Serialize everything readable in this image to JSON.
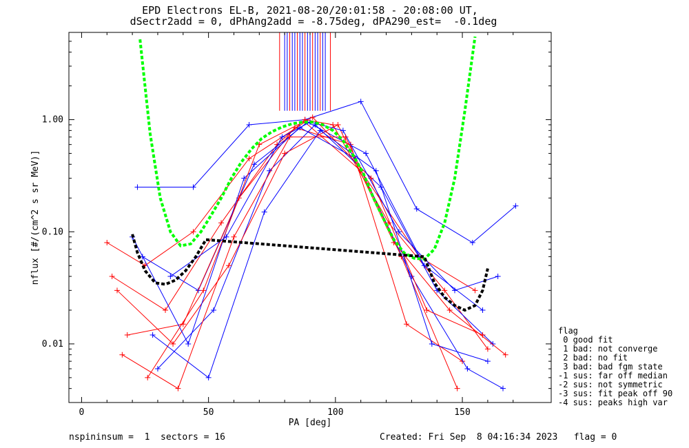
{
  "title": {
    "line1": "EPD Electrons EL-B, 2021-08-20/20:01:58 - 20:08:00 UT,",
    "line2": "dSectr2add = 0, dPhAng2add = -8.75deg, dPA290_est=  -0.1deg"
  },
  "footer": {
    "left": "nspininsum =  1  sectors = 16",
    "right": "Created: Fri Sep  8 04:16:34 2023   flag = 0"
  },
  "legend": {
    "title": "flag",
    "items": [
      " 0 good fit",
      " 1 bad: not converge",
      " 2 bad: no fit",
      " 3 bad: bad fgm state",
      "-1 sus: far off median",
      "-2 sus: not symmetric",
      "-3 sus: fit peak off 90",
      "-4 sus: peaks high var"
    ]
  },
  "chart_data": {
    "type": "line",
    "xlabel": "PA [deg]",
    "ylabel": "nflux [#/(cm^2 s sr MeV)]",
    "xlim": [
      -5,
      185
    ],
    "ylim": [
      0.003,
      6.0
    ],
    "ylog": true,
    "xticks": [
      0,
      50,
      100,
      150
    ],
    "yticks": [
      {
        "value": 0.01,
        "label": "0.01"
      },
      {
        "value": 0.1,
        "label": "0.10"
      },
      {
        "value": 1.0,
        "label": "1.00"
      }
    ],
    "colors": {
      "red": "#ff0000",
      "blue": "#0000ff",
      "green": "#00ff00",
      "black": "#000000"
    },
    "series": [
      {
        "color": "red",
        "x": [
          10,
          25,
          44,
          66,
          88,
          110,
          133,
          155
        ],
        "y": [
          0.08,
          0.05,
          0.1,
          0.45,
          0.95,
          0.35,
          0.06,
          0.03
        ]
      },
      {
        "color": "blue",
        "x": [
          22,
          44,
          66,
          88,
          110,
          132,
          154,
          171
        ],
        "y": [
          0.25,
          0.25,
          0.9,
          1.0,
          1.45,
          0.16,
          0.08,
          0.17
        ]
      },
      {
        "color": "red",
        "x": [
          12,
          33,
          55,
          77,
          88,
          99,
          121,
          143,
          160
        ],
        "y": [
          0.04,
          0.02,
          0.12,
          0.6,
          1.0,
          0.9,
          0.12,
          0.03,
          0.009
        ]
      },
      {
        "color": "blue",
        "x": [
          24,
          46,
          68,
          89,
          112,
          135,
          158
        ],
        "y": [
          0.06,
          0.03,
          0.4,
          0.95,
          0.5,
          0.05,
          0.02
        ]
      },
      {
        "color": "red",
        "x": [
          18,
          40,
          62,
          84,
          106,
          128,
          150
        ],
        "y": [
          0.012,
          0.015,
          0.2,
          0.85,
          0.6,
          0.015,
          0.007
        ]
      },
      {
        "color": "blue",
        "x": [
          30,
          52,
          74,
          92,
          118,
          140,
          162
        ],
        "y": [
          0.006,
          0.02,
          0.35,
          0.9,
          0.25,
          0.03,
          0.01
        ]
      },
      {
        "color": "red",
        "x": [
          14,
          36,
          58,
          80,
          101,
          123,
          145,
          167
        ],
        "y": [
          0.03,
          0.01,
          0.05,
          0.5,
          0.9,
          0.08,
          0.02,
          0.008
        ]
      },
      {
        "color": "blue",
        "x": [
          20,
          42,
          64,
          86,
          108,
          130,
          152,
          166
        ],
        "y": [
          0.09,
          0.01,
          0.3,
          0.85,
          0.45,
          0.04,
          0.006,
          0.004
        ]
      },
      {
        "color": "red",
        "x": [
          26,
          48,
          70,
          91,
          114,
          136,
          158
        ],
        "y": [
          0.005,
          0.03,
          0.6,
          1.05,
          0.3,
          0.02,
          0.012
        ]
      },
      {
        "color": "blue",
        "x": [
          35,
          57,
          79,
          90,
          103,
          125,
          147,
          164
        ],
        "y": [
          0.04,
          0.09,
          0.7,
          0.95,
          0.8,
          0.1,
          0.03,
          0.04
        ]
      },
      {
        "color": "red",
        "x": [
          16,
          38,
          60,
          82,
          104,
          126,
          148
        ],
        "y": [
          0.008,
          0.004,
          0.09,
          0.7,
          0.7,
          0.06,
          0.004
        ]
      },
      {
        "color": "blue",
        "x": [
          28,
          50,
          72,
          94,
          116,
          138,
          160
        ],
        "y": [
          0.012,
          0.005,
          0.15,
          0.8,
          0.35,
          0.01,
          0.007
        ]
      }
    ],
    "fits": [
      {
        "color": "green",
        "x": [
          23,
          27,
          31,
          35,
          39,
          43,
          47,
          51,
          55,
          59,
          63,
          67,
          71,
          75,
          79,
          83,
          87,
          91,
          95,
          99,
          103,
          107,
          111,
          115,
          119,
          123,
          127,
          131,
          135,
          139,
          143,
          147,
          151,
          155
        ],
        "y": [
          5.2,
          0.75,
          0.2,
          0.1,
          0.075,
          0.078,
          0.1,
          0.14,
          0.2,
          0.3,
          0.42,
          0.55,
          0.68,
          0.78,
          0.86,
          0.92,
          0.95,
          0.95,
          0.9,
          0.8,
          0.65,
          0.48,
          0.33,
          0.2,
          0.13,
          0.085,
          0.065,
          0.058,
          0.057,
          0.07,
          0.12,
          0.3,
          1.2,
          5.5
        ]
      },
      {
        "color": "black",
        "x": [
          20,
          22,
          25,
          29,
          33,
          37,
          41,
          45,
          49,
          135,
          139,
          143,
          147,
          151,
          155,
          158,
          160
        ],
        "y": [
          0.095,
          0.065,
          0.045,
          0.035,
          0.034,
          0.037,
          0.045,
          0.06,
          0.085,
          0.06,
          0.035,
          0.026,
          0.022,
          0.02,
          0.022,
          0.03,
          0.047
        ]
      }
    ]
  }
}
